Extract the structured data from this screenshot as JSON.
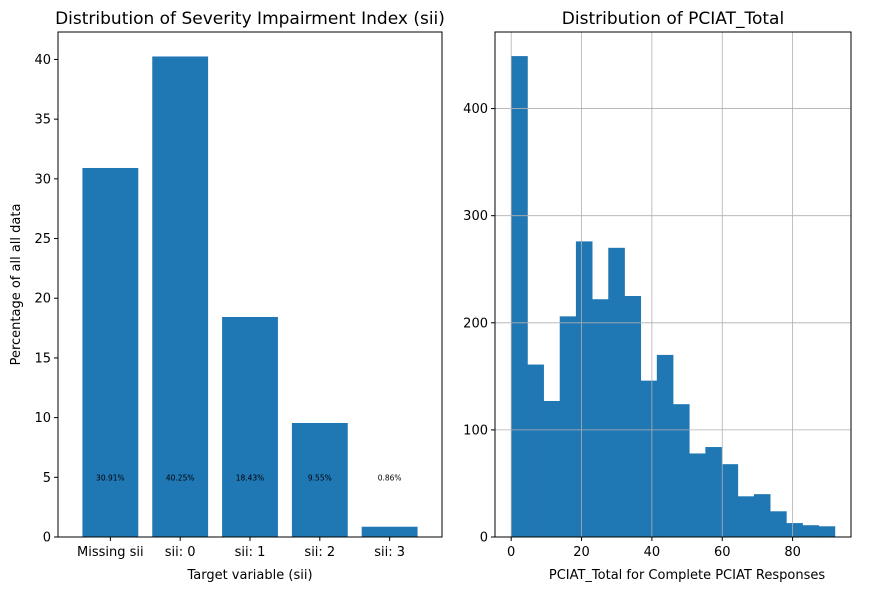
{
  "colors": {
    "bar": "#1f77b4",
    "grid": "#b0b0b0",
    "axis": "#000000"
  },
  "chart_data": [
    {
      "type": "bar",
      "title": "Distribution of Severity Impairment Index (sii)",
      "xlabel": "Target variable (sii)",
      "ylabel": "Percentage of all all data",
      "categories": [
        "Missing sii",
        "sii: 0",
        "sii: 1",
        "sii: 2",
        "sii: 3"
      ],
      "values": [
        30.91,
        40.25,
        18.43,
        9.55,
        0.86
      ],
      "data_labels": [
        "30.91%",
        "40.25%",
        "18.43%",
        "9.55%",
        "0.86%"
      ],
      "data_label_y": 5,
      "ylim": [
        0,
        42.3
      ],
      "yticks": [
        0,
        5,
        10,
        15,
        20,
        25,
        30,
        35,
        40
      ],
      "grid": false
    },
    {
      "type": "bar",
      "subtype": "histogram",
      "title": "Distribution of PCIAT_Total",
      "xlabel": "PCIAT_Total for Complete PCIAT Responses",
      "ylabel": "",
      "bin_edges": [
        0,
        4.6,
        9.2,
        13.8,
        18.4,
        23,
        27.6,
        32.2,
        36.8,
        41.4,
        46,
        50.6,
        55.2,
        59.8,
        64.4,
        69,
        73.6,
        78.2,
        82.8,
        87.4,
        92
      ],
      "counts": [
        449,
        161,
        127,
        206,
        276,
        222,
        270,
        225,
        146,
        170,
        124,
        78,
        84,
        68,
        38,
        40,
        24,
        13,
        11,
        10
      ],
      "xlim": [
        -4.6,
        96.6
      ],
      "ylim": [
        0,
        471.5
      ],
      "xticks": [
        0,
        20,
        40,
        60,
        80
      ],
      "yticks": [
        0,
        100,
        200,
        300,
        400
      ],
      "grid": true
    }
  ]
}
